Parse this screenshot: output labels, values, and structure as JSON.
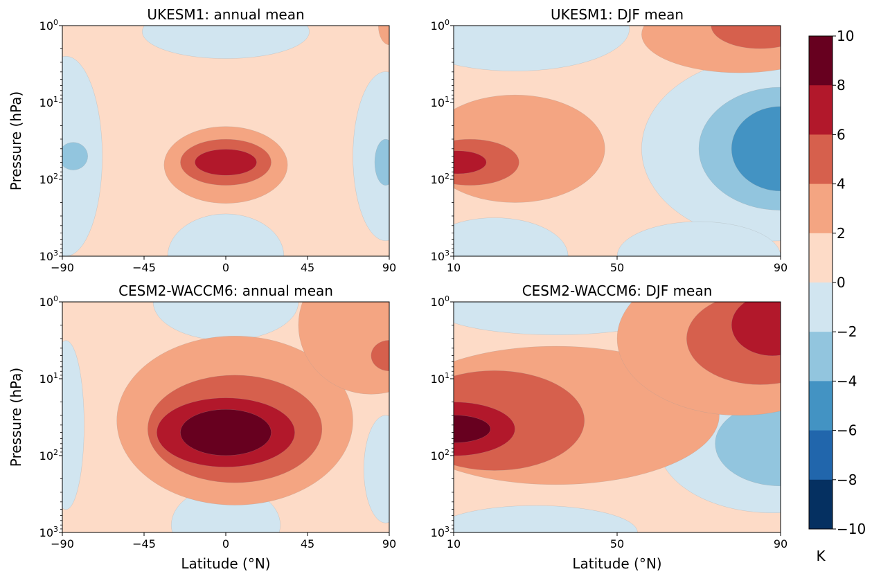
{
  "chart_data": [
    {
      "type": "heatmap",
      "title": "UKESM1: annual mean",
      "xlabel": "",
      "ylabel": "Pressure (hPa)",
      "xlim": [
        -90,
        90
      ],
      "xticks": [
        "−90",
        "−45",
        "0",
        "45",
        "90"
      ],
      "yscale": "log",
      "ylim": [
        1000,
        1
      ],
      "ylabels": [
        {
          "b": "10",
          "e": "0"
        },
        {
          "b": "10",
          "e": "1"
        },
        {
          "b": "10",
          "e": "2"
        },
        {
          "b": "10",
          "e": "3"
        }
      ],
      "fields": [
        {
          "level": -2,
          "lat": -88,
          "p": 50,
          "rlat": 20,
          "rlogp": 1.3
        },
        {
          "level": -2,
          "lat": 0,
          "p": 1.2,
          "rlat": 46,
          "rlogp": 0.35
        },
        {
          "level": -2,
          "lat": 0,
          "p": 1000,
          "rlat": 32,
          "rlogp": 0.55
        },
        {
          "level": -2,
          "lat": 88,
          "p": 50,
          "rlat": 18,
          "rlogp": 1.1
        },
        {
          "level": -4,
          "lat": -84,
          "p": 50,
          "rlat": 8,
          "rlogp": 0.18
        },
        {
          "level": -4,
          "lat": 88,
          "p": 60,
          "rlat": 6,
          "rlogp": 0.3
        },
        {
          "level": 2,
          "lat": 0,
          "p": 65,
          "rlat": 34,
          "rlogp": 0.5
        },
        {
          "level": 4,
          "lat": 0,
          "p": 60,
          "rlat": 25,
          "rlogp": 0.3
        },
        {
          "level": 6,
          "lat": 0,
          "p": 60,
          "rlat": 17,
          "rlogp": 0.17
        },
        {
          "level": 2,
          "lat": 90,
          "p": 1,
          "rlat": 6,
          "rlogp": 0.25
        }
      ]
    },
    {
      "type": "heatmap",
      "title": "UKESM1: DJF mean",
      "xlabel": "",
      "ylabel": "",
      "xlim": [
        10,
        90
      ],
      "xticks": [
        "10",
        "50",
        "90"
      ],
      "yscale": "log",
      "ylim": [
        1000,
        1
      ],
      "ylabels": [
        {
          "b": "10",
          "e": "0"
        },
        {
          "b": "10",
          "e": "1"
        },
        {
          "b": "10",
          "e": "2"
        },
        {
          "b": "10",
          "e": "3"
        }
      ],
      "fields": [
        {
          "level": -2,
          "lat": 25,
          "p": 1.1,
          "rlat": 28,
          "rlogp": 0.55
        },
        {
          "level": -2,
          "lat": 88,
          "p": 40,
          "rlat": 32,
          "rlogp": 1.2
        },
        {
          "level": -2,
          "lat": 20,
          "p": 1000,
          "rlat": 18,
          "rlogp": 0.5
        },
        {
          "level": -2,
          "lat": 70,
          "p": 1000,
          "rlat": 20,
          "rlogp": 0.45
        },
        {
          "level": -4,
          "lat": 90,
          "p": 40,
          "rlat": 20,
          "rlogp": 0.8
        },
        {
          "level": -6,
          "lat": 90,
          "p": 40,
          "rlat": 12,
          "rlogp": 0.55
        },
        {
          "level": 2,
          "lat": 25,
          "p": 40,
          "rlat": 22,
          "rlogp": 0.7
        },
        {
          "level": 2,
          "lat": 80,
          "p": 1.3,
          "rlat": 24,
          "rlogp": 0.5
        },
        {
          "level": 4,
          "lat": 14,
          "p": 60,
          "rlat": 12,
          "rlogp": 0.3
        },
        {
          "level": 6,
          "lat": 11,
          "p": 60,
          "rlat": 7,
          "rlogp": 0.15
        },
        {
          "level": 4,
          "lat": 85,
          "p": 1,
          "rlat": 12,
          "rlogp": 0.3
        }
      ]
    },
    {
      "type": "heatmap",
      "title": "CESM2-WACCM6: annual mean",
      "xlabel": "Latitude (°N)",
      "ylabel": "Pressure (hPa)",
      "xlim": [
        -90,
        90
      ],
      "xticks": [
        "−90",
        "−45",
        "0",
        "45",
        "90"
      ],
      "yscale": "log",
      "ylim": [
        1000,
        1
      ],
      "ylabels": [
        {
          "b": "10",
          "e": "0"
        },
        {
          "b": "10",
          "e": "1"
        },
        {
          "b": "10",
          "e": "2"
        },
        {
          "b": "10",
          "e": "3"
        }
      ],
      "fields": [
        {
          "level": -2,
          "lat": 0,
          "p": 1,
          "rlat": 40,
          "rlogp": 0.5
        },
        {
          "level": -2,
          "lat": 0,
          "p": 800,
          "rlat": 30,
          "rlogp": 0.5
        },
        {
          "level": -2,
          "lat": 88,
          "p": 150,
          "rlat": 12,
          "rlogp": 0.7
        },
        {
          "level": -2,
          "lat": -88,
          "p": 40,
          "rlat": 10,
          "rlogp": 1.1
        },
        {
          "level": 2,
          "lat": 5,
          "p": 35,
          "rlat": 65,
          "rlogp": 1.1
        },
        {
          "level": 2,
          "lat": 80,
          "p": 2,
          "rlat": 40,
          "rlogp": 0.9
        },
        {
          "level": 4,
          "lat": 5,
          "p": 45,
          "rlat": 48,
          "rlogp": 0.7
        },
        {
          "level": 4,
          "lat": 90,
          "p": 5,
          "rlat": 10,
          "rlogp": 0.2
        },
        {
          "level": 6,
          "lat": 0,
          "p": 50,
          "rlat": 38,
          "rlogp": 0.45
        },
        {
          "level": 8,
          "lat": 0,
          "p": 50,
          "rlat": 25,
          "rlogp": 0.3
        }
      ]
    },
    {
      "type": "heatmap",
      "title": "CESM2-WACCM6: DJF mean",
      "xlabel": "Latitude (°N)",
      "ylabel": "",
      "xlim": [
        10,
        90
      ],
      "xticks": [
        "10",
        "50",
        "90"
      ],
      "yscale": "log",
      "ylim": [
        1000,
        1
      ],
      "ylabels": [
        {
          "b": "10",
          "e": "0"
        },
        {
          "b": "10",
          "e": "1"
        },
        {
          "b": "10",
          "e": "2"
        },
        {
          "b": "10",
          "e": "3"
        }
      ],
      "fields": [
        {
          "level": -2,
          "lat": 35,
          "p": 1.2,
          "rlat": 30,
          "rlogp": 0.35
        },
        {
          "level": -2,
          "lat": 88,
          "p": 70,
          "rlat": 28,
          "rlogp": 0.9
        },
        {
          "level": -2,
          "lat": 30,
          "p": 1000,
          "rlat": 25,
          "rlogp": 0.35
        },
        {
          "level": -4,
          "lat": 90,
          "p": 70,
          "rlat": 16,
          "rlogp": 0.55
        },
        {
          "level": 2,
          "lat": 35,
          "p": 30,
          "rlat": 40,
          "rlogp": 0.9
        },
        {
          "level": 2,
          "lat": 80,
          "p": 3,
          "rlat": 30,
          "rlogp": 1.0
        },
        {
          "level": 4,
          "lat": 20,
          "p": 35,
          "rlat": 22,
          "rlogp": 0.65
        },
        {
          "level": 4,
          "lat": 85,
          "p": 3,
          "rlat": 18,
          "rlogp": 0.6
        },
        {
          "level": 6,
          "lat": 10,
          "p": 45,
          "rlat": 15,
          "rlogp": 0.35
        },
        {
          "level": 6,
          "lat": 88,
          "p": 2,
          "rlat": 10,
          "rlogp": 0.4
        },
        {
          "level": 8,
          "lat": 10,
          "p": 45,
          "rlat": 9,
          "rlogp": 0.18
        }
      ]
    }
  ],
  "colorbar": {
    "ticks": [
      "10",
      "8",
      "6",
      "4",
      "2",
      "0",
      "−2",
      "−4",
      "−6",
      "−8",
      "−10"
    ],
    "unit": "K",
    "levels": [
      {
        "level": 8,
        "color": "#67001f"
      },
      {
        "level": 6,
        "color": "#b2182b"
      },
      {
        "level": 4,
        "color": "#d6604d"
      },
      {
        "level": 2,
        "color": "#f4a582"
      },
      {
        "level": 0,
        "color": "#fddbc7"
      },
      {
        "level": -2,
        "color": "#d1e5f0"
      },
      {
        "level": -4,
        "color": "#92c5de"
      },
      {
        "level": -6,
        "color": "#4393c3"
      },
      {
        "level": -8,
        "color": "#2166ac"
      },
      {
        "level": -10,
        "color": "#053061"
      }
    ]
  }
}
